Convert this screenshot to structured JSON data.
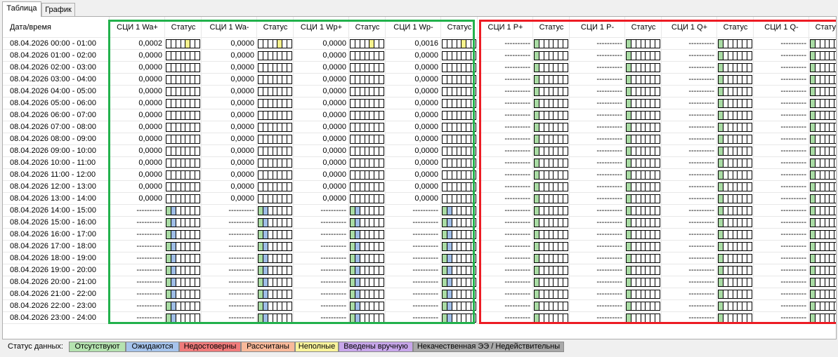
{
  "tabs": [
    "Таблица",
    "График"
  ],
  "active_tab": 0,
  "header": {
    "datetime": "Дата/время",
    "status": "Статус",
    "channels": [
      "СЦИ 1 Wa+",
      "СЦИ 1 Wa-",
      "СЦИ 1 Wp+",
      "СЦИ 1 Wp-",
      "СЦИ 1 P+",
      "СЦИ 1 P-",
      "СЦИ 1 Q+",
      "СЦИ 1 Q-"
    ]
  },
  "empty_value": "----------",
  "rows": [
    {
      "datetime": "08.04.2026 00:00 - 01:00",
      "values": [
        "0,0002",
        "0,0000",
        "0,0000",
        "0,0016"
      ],
      "state": "incomplete"
    },
    {
      "datetime": "08.04.2026 01:00 - 02:00",
      "values": [
        "0,0000",
        "0,0000",
        "0,0000",
        "0,0000"
      ],
      "state": "ok"
    },
    {
      "datetime": "08.04.2026 02:00 - 03:00",
      "values": [
        "0,0000",
        "0,0000",
        "0,0000",
        "0,0000"
      ],
      "state": "ok"
    },
    {
      "datetime": "08.04.2026 03:00 - 04:00",
      "values": [
        "0,0000",
        "0,0000",
        "0,0000",
        "0,0000"
      ],
      "state": "ok"
    },
    {
      "datetime": "08.04.2026 04:00 - 05:00",
      "values": [
        "0,0000",
        "0,0000",
        "0,0000",
        "0,0000"
      ],
      "state": "ok"
    },
    {
      "datetime": "08.04.2026 05:00 - 06:00",
      "values": [
        "0,0000",
        "0,0000",
        "0,0000",
        "0,0000"
      ],
      "state": "ok"
    },
    {
      "datetime": "08.04.2026 06:00 - 07:00",
      "values": [
        "0,0000",
        "0,0000",
        "0,0000",
        "0,0000"
      ],
      "state": "ok"
    },
    {
      "datetime": "08.04.2026 07:00 - 08:00",
      "values": [
        "0,0000",
        "0,0000",
        "0,0000",
        "0,0000"
      ],
      "state": "ok"
    },
    {
      "datetime": "08.04.2026 08:00 - 09:00",
      "values": [
        "0,0000",
        "0,0000",
        "0,0000",
        "0,0000"
      ],
      "state": "ok"
    },
    {
      "datetime": "08.04.2026 09:00 - 10:00",
      "values": [
        "0,0000",
        "0,0000",
        "0,0000",
        "0,0000"
      ],
      "state": "ok"
    },
    {
      "datetime": "08.04.2026 10:00 - 11:00",
      "values": [
        "0,0000",
        "0,0000",
        "0,0000",
        "0,0000"
      ],
      "state": "ok"
    },
    {
      "datetime": "08.04.2026 11:00 - 12:00",
      "values": [
        "0,0000",
        "0,0000",
        "0,0000",
        "0,0000"
      ],
      "state": "ok"
    },
    {
      "datetime": "08.04.2026 12:00 - 13:00",
      "values": [
        "0,0000",
        "0,0000",
        "0,0000",
        "0,0000"
      ],
      "state": "ok"
    },
    {
      "datetime": "08.04.2026 13:00 - 14:00",
      "values": [
        "0,0000",
        "0,0000",
        "0,0000",
        "0,0000"
      ],
      "state": "ok"
    },
    {
      "datetime": "08.04.2026 14:00 - 15:00",
      "values": null,
      "state": "pending"
    },
    {
      "datetime": "08.04.2026 15:00 - 16:00",
      "values": null,
      "state": "pending"
    },
    {
      "datetime": "08.04.2026 16:00 - 17:00",
      "values": null,
      "state": "pending"
    },
    {
      "datetime": "08.04.2026 17:00 - 18:00",
      "values": null,
      "state": "pending"
    },
    {
      "datetime": "08.04.2026 18:00 - 19:00",
      "values": null,
      "state": "pending"
    },
    {
      "datetime": "08.04.2026 19:00 - 20:00",
      "values": null,
      "state": "pending"
    },
    {
      "datetime": "08.04.2026 20:00 - 21:00",
      "values": null,
      "state": "pending"
    },
    {
      "datetime": "08.04.2026 21:00 - 22:00",
      "values": null,
      "state": "pending"
    },
    {
      "datetime": "08.04.2026 22:00 - 23:00",
      "values": null,
      "state": "pending"
    },
    {
      "datetime": "08.04.2026 23:00 - 24:00",
      "values": null,
      "state": "pending"
    }
  ],
  "status_colors": {
    "missing": "#a9dca4",
    "pending": "#9fbde6",
    "incomplete": "#f7f28c"
  },
  "highlight_colors": {
    "left_group": "#22b14c",
    "right_group": "#ed1c24"
  },
  "legend": {
    "label": "Статус данных:",
    "items": [
      {
        "text": "Отсутствуют",
        "color": "#b5e3b0"
      },
      {
        "text": "Ожидаются",
        "color": "#a6c4ec"
      },
      {
        "text": "Недостоверны",
        "color": "#f07b7b"
      },
      {
        "text": "Рассчитаны",
        "color": "#f9b99a"
      },
      {
        "text": "Неполные",
        "color": "#f9f39a"
      },
      {
        "text": "Введены вручную",
        "color": "#c7a6ea"
      },
      {
        "text": "Некачественная ЭЭ / Недействительны",
        "color": "#a9a9a9"
      }
    ]
  }
}
